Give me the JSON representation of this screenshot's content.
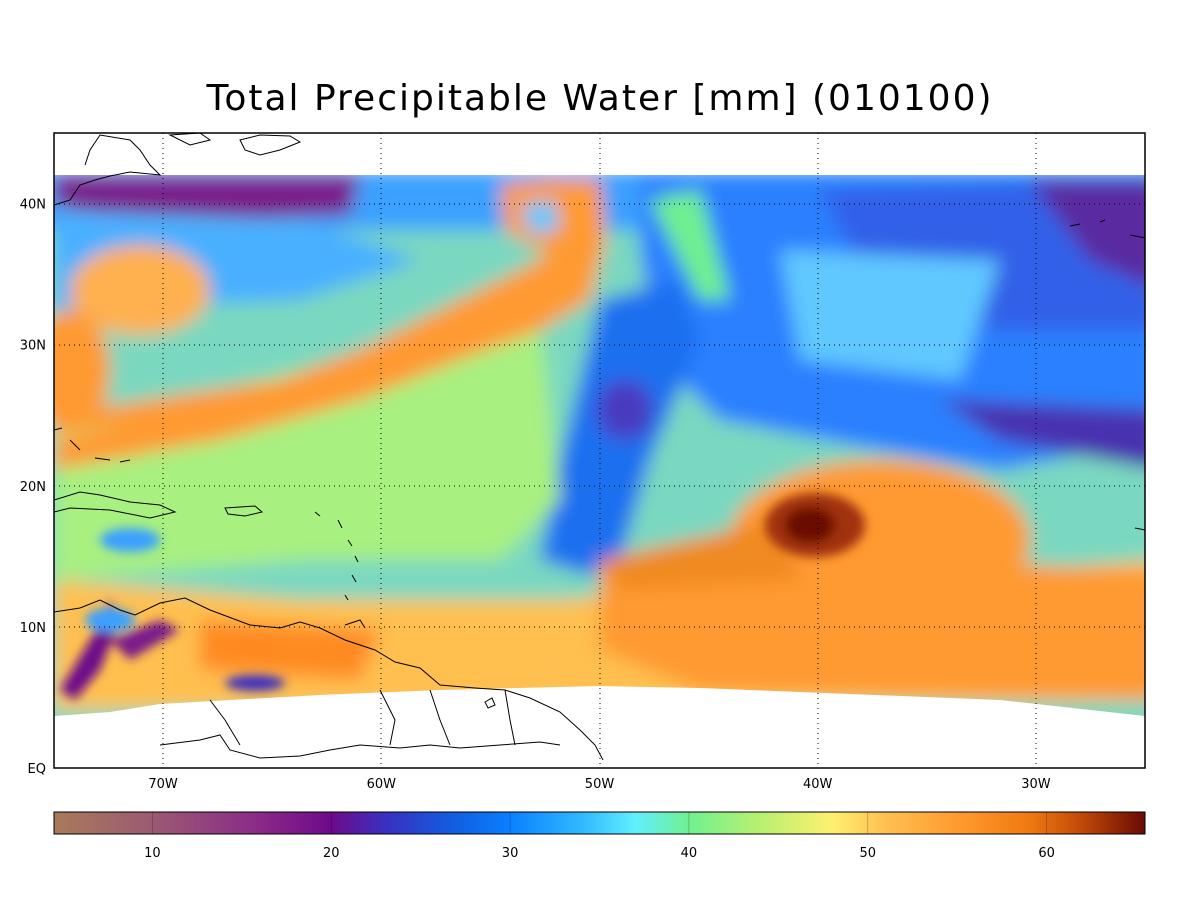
{
  "title": "Total Precipitable Water [mm]  (010100)",
  "map": {
    "lon_range": [
      -75,
      -25
    ],
    "lat_range": [
      0,
      45
    ],
    "data_lat_top": 42,
    "lon_ticks": [
      {
        "value": -70,
        "label": "70W"
      },
      {
        "value": -60,
        "label": "60W"
      },
      {
        "value": -50,
        "label": "50W"
      },
      {
        "value": -40,
        "label": "40W"
      },
      {
        "value": -30,
        "label": "30W"
      }
    ],
    "lat_ticks": [
      {
        "value": 40,
        "label": "40N"
      },
      {
        "value": 30,
        "label": "30N"
      },
      {
        "value": 20,
        "label": "20N"
      },
      {
        "value": 10,
        "label": "10N"
      },
      {
        "value": 0,
        "label": "EQ"
      }
    ],
    "grid": "dotted"
  },
  "colorbar": {
    "range": [
      4.5,
      65.5
    ],
    "ticks": [
      {
        "value": 10,
        "label": "10"
      },
      {
        "value": 20,
        "label": "20"
      },
      {
        "value": 30,
        "label": "30"
      },
      {
        "value": 40,
        "label": "40"
      },
      {
        "value": 50,
        "label": "50"
      },
      {
        "value": 60,
        "label": "60"
      }
    ],
    "stops": [
      {
        "value": 4.5,
        "color": "#a97a5a"
      },
      {
        "value": 10,
        "color": "#9b5a73"
      },
      {
        "value": 16,
        "color": "#8a2a88"
      },
      {
        "value": 20,
        "color": "#6e0a8a"
      },
      {
        "value": 23,
        "color": "#3a2fc0"
      },
      {
        "value": 27,
        "color": "#1060e0"
      },
      {
        "value": 30,
        "color": "#0a80ff"
      },
      {
        "value": 34,
        "color": "#30b8ff"
      },
      {
        "value": 37,
        "color": "#60f0ff"
      },
      {
        "value": 40,
        "color": "#70f090"
      },
      {
        "value": 44,
        "color": "#b8f070"
      },
      {
        "value": 48,
        "color": "#fff070"
      },
      {
        "value": 51,
        "color": "#ffc050"
      },
      {
        "value": 55,
        "color": "#ff9a30"
      },
      {
        "value": 59,
        "color": "#f07a10"
      },
      {
        "value": 62,
        "color": "#c04808"
      },
      {
        "value": 65.5,
        "color": "#6a0a04"
      }
    ]
  }
}
